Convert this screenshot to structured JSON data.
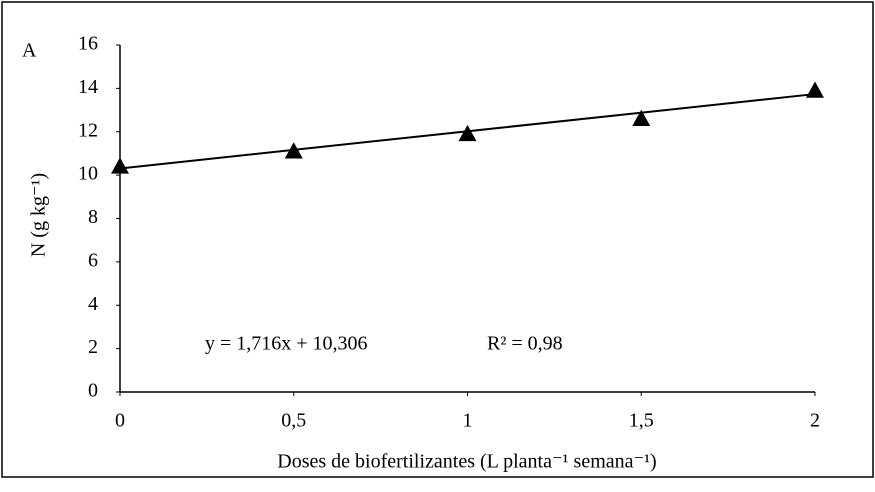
{
  "chart_data": {
    "type": "scatter",
    "panel_label": "A",
    "xlabel": "Doses de biofertilizantes (L planta⁻¹ semana⁻¹)",
    "ylabel": "N (g kg⁻¹)",
    "x": [
      0,
      0.5,
      1,
      1.5,
      2
    ],
    "series": [
      {
        "name": "N",
        "color": "#000000",
        "values": [
          10.4,
          11.1,
          11.9,
          12.6,
          13.9
        ]
      }
    ],
    "trendline": {
      "slope": 1.716,
      "intercept": 10.306,
      "equation": "y = 1,716x + 10,306",
      "r2": "R² = 0,98"
    },
    "xlim": [
      0,
      2
    ],
    "xticks": [
      0,
      {
        "value": 0.5,
        "label": "0,5"
      },
      1,
      {
        "value": 1.5,
        "label": "1,5"
      },
      2
    ],
    "ylim": [
      0,
      16
    ],
    "yticks": [
      0,
      2,
      4,
      6,
      8,
      10,
      12,
      14,
      16
    ],
    "grid": false
  }
}
